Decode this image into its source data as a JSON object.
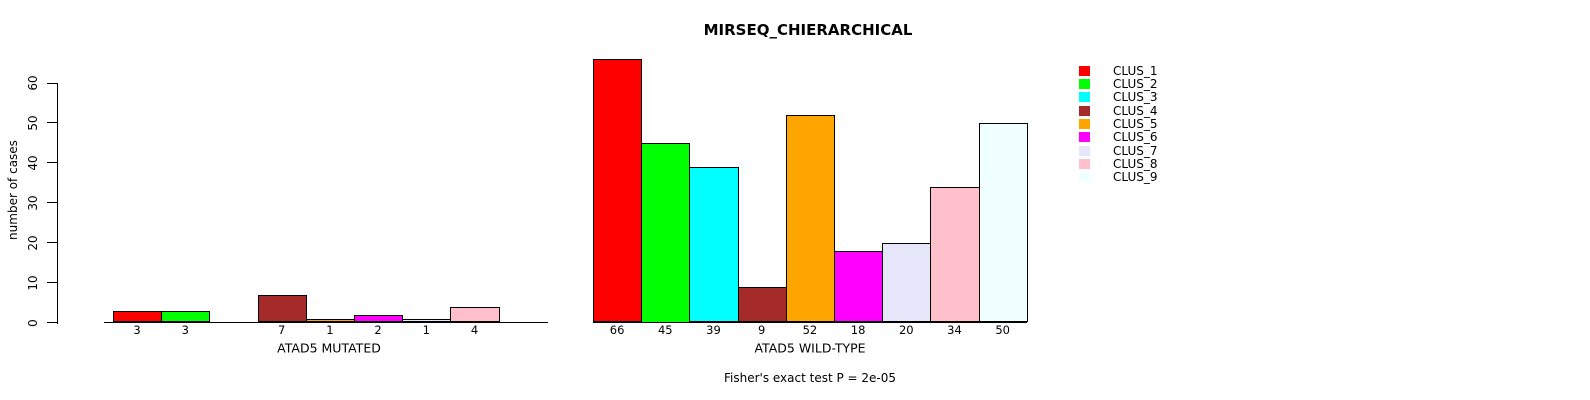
{
  "title": "MIRSEQ_CHIERARCHICAL",
  "y_axis": {
    "label": "number of cases",
    "ticks": [
      0,
      10,
      20,
      30,
      40,
      50,
      60
    ]
  },
  "footer": "Fisher's exact test P = 2e-05",
  "chart_data": {
    "type": "bar",
    "title": "MIRSEQ_CHIERARCHICAL",
    "ylabel": "number of cases",
    "ylim": [
      0,
      60
    ],
    "yticks": [
      0,
      10,
      20,
      30,
      40,
      50,
      60
    ],
    "grid": false,
    "legend_position": "right",
    "categories": [
      "CLUS_1",
      "CLUS_2",
      "CLUS_3",
      "CLUS_4",
      "CLUS_5",
      "CLUS_6",
      "CLUS_7",
      "CLUS_8",
      "CLUS_9"
    ],
    "palette": [
      "#FF0000",
      "#00FF00",
      "#00FFFF",
      "#A52A2A",
      "#FFA500",
      "#FF00FF",
      "#E6E6FA",
      "#FFC0CB",
      "#F0FFFF"
    ],
    "bar_border_color": "#000000",
    "groups": [
      {
        "label": "ATAD5 MUTATED",
        "values": [
          3,
          3,
          0,
          7,
          1,
          2,
          1,
          4,
          0
        ]
      },
      {
        "label": "ATAD5 WILD-TYPE",
        "values": [
          66,
          45,
          39,
          9,
          52,
          18,
          20,
          34,
          50
        ]
      }
    ],
    "annotation": "Fisher's exact test P = 2e-05"
  }
}
